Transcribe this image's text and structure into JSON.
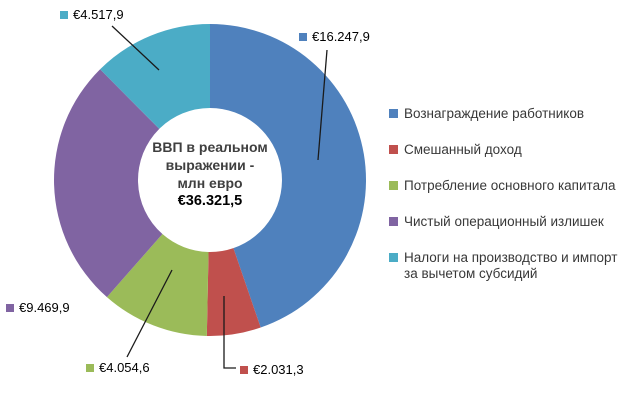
{
  "chart_data": {
    "type": "pie",
    "subtype": "donut",
    "title": "",
    "legend_position": "right",
    "grid": false,
    "center_text": {
      "lines": [
        "ВВП в реальном",
        "выражении -",
        "млн евро"
      ],
      "value": "€36.321,5"
    },
    "total": 36321.5,
    "currency": "EUR",
    "slices": [
      {
        "label": "Вознаграждение работников",
        "value": 16247.9,
        "value_label": "€16.247,9",
        "color": "#4F81BD"
      },
      {
        "label": "Смешанный доход",
        "value": 2031.3,
        "value_label": "€2.031,3",
        "color": "#C0504D"
      },
      {
        "label": "Потребление основного капитала",
        "value": 4054.6,
        "value_label": "€4.054,6",
        "color": "#9BBB59"
      },
      {
        "label": "Чистый операционный излишек",
        "value": 9469.9,
        "value_label": "€9.469,9",
        "color": "#8064A2"
      },
      {
        "label": "Налоги на производство и импорт за вычетом субсидий",
        "label_lines": [
          "Налоги на производство и импорт",
          "за вычетом субсидий"
        ],
        "value": 4517.9,
        "value_label": "€4.517,9",
        "color": "#4BACC6"
      }
    ]
  }
}
